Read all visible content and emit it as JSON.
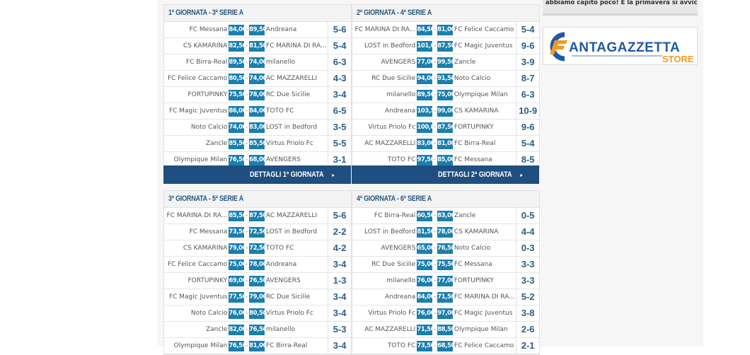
{
  "colors": {
    "points_box": "#1a7fae",
    "result": "#2a5d8f",
    "button": "#1f4f80",
    "header_text": "#2b5680",
    "logo_blue": "#1f5aa6",
    "logo_orange": "#f39a1e"
  },
  "sidebar": {
    "snippet": "abbiamo capito poco! E la primavera si avvicina...",
    "logo": {
      "text_main": "ANTAGAZZETTA",
      "text_sub": "STORE",
      "icon": "fantagazzetta-logo"
    }
  },
  "rounds": [
    {
      "title": "1ª GIORNATA - 3ª SERIE A",
      "button": "DETTAGLI 1ª GIORNATA",
      "matches": [
        [
          "FC Messana",
          "84,00",
          "89,50",
          "Andreana",
          "5-6"
        ],
        [
          "CS KAMARINA",
          "82,50",
          "81,50",
          "FC MARINA DI RA...",
          "5-4"
        ],
        [
          "FC Birra-Real",
          "89,50",
          "74,00",
          "milanello",
          "6-3"
        ],
        [
          "FC Felice Caccamo",
          "80,50",
          "74,00",
          "AC MAZZARELLI",
          "4-3"
        ],
        [
          "FORTUPINKY",
          "75,50",
          "78,00",
          "RC Due Sicilie",
          "3-4"
        ],
        [
          "FC Magic Juventus",
          "86,00",
          "84,00",
          "TOTO FC",
          "6-5"
        ],
        [
          "Noto Calcio",
          "74,00",
          "83,00",
          "LOST in Bedford",
          "3-5"
        ],
        [
          "Zancle",
          "85,50",
          "85,50",
          "Virtus Priolo Fc",
          "5-5"
        ],
        [
          "Olympique Milan",
          "76,50",
          "68,00",
          "AVENGERS",
          "3-1"
        ]
      ]
    },
    {
      "title": "2ª GIORNATA - 4ª SERIE A",
      "button": "DETTAGLI 2ª GIORNATA",
      "matches": [
        [
          "FC MARINA DI RA...",
          "84,50",
          "81,00",
          "FC Felice Caccamo",
          "5-4"
        ],
        [
          "LOST in Bedford",
          "101,0",
          "87,50",
          "FC Magic Juventus",
          "9-6"
        ],
        [
          "AVENGERS",
          "77,00",
          "99,50",
          "Zancle",
          "3-9"
        ],
        [
          "RC Due Sicilie",
          "94,00",
          "91,50",
          "Noto Calcio",
          "8-7"
        ],
        [
          "milanello",
          "89,50",
          "75,00",
          "Olympique Milan",
          "6-3"
        ],
        [
          "Andreana",
          "103,5",
          "99,00",
          "CS KAMARINA",
          "10-9"
        ],
        [
          "Virtus Priolo Fc",
          "100,0",
          "87,50",
          "FORTUPINKY",
          "9-6"
        ],
        [
          "AC MAZZARELLI",
          "83,00",
          "81,00",
          "FC Birra-Real",
          "5-4"
        ],
        [
          "TOTO FC",
          "97,50",
          "85,00",
          "FC Messana",
          "8-5"
        ]
      ]
    },
    {
      "title": "3ª GIORNATA - 5ª SERIE A",
      "matches": [
        [
          "FC MARINA DI RA...",
          "85,50",
          "87,50",
          "AC MAZZARELLI",
          "5-6"
        ],
        [
          "FC Messana",
          "73,50",
          "72,50",
          "LOST in Bedford",
          "2-2"
        ],
        [
          "CS KAMARINA",
          "79,00",
          "72,50",
          "TOTO FC",
          "4-2"
        ],
        [
          "FC Felice Caccamo",
          "75,00",
          "78,00",
          "Andreana",
          "3-4"
        ],
        [
          "FORTUPINKY",
          "69,00",
          "76,50",
          "AVENGERS",
          "1-3"
        ],
        [
          "FC Magic Juventus",
          "77,50",
          "79,00",
          "RC Due Sicilie",
          "3-4"
        ],
        [
          "Noto Calcio",
          "76,00",
          "80,50",
          "Virtus Priolo Fc",
          "3-4"
        ],
        [
          "Zancle",
          "82,00",
          "76,50",
          "milanello",
          "5-3"
        ],
        [
          "Olympique Milan",
          "76,50",
          "81,00",
          "FC Birra-Real",
          "3-4"
        ]
      ]
    },
    {
      "title": "4ª GIORNATA - 6ª SERIE A",
      "matches": [
        [
          "FC Birra-Real",
          "60,50",
          "83,00",
          "Zancle",
          "0-5"
        ],
        [
          "LOST in Bedford",
          "81,50",
          "78,00",
          "CS KAMARINA",
          "4-4"
        ],
        [
          "AVENGERS",
          "65,00",
          "76,50",
          "Noto Calcio",
          "0-3"
        ],
        [
          "RC Due Sicilie",
          "75,00",
          "75,50",
          "FC Messana",
          "3-3"
        ],
        [
          "milanello",
          "76,00",
          "77,00",
          "FORTUPINKY",
          "3-3"
        ],
        [
          "Andreana",
          "84,00",
          "71,50",
          "FC MARINA DI RA...",
          "5-2"
        ],
        [
          "Virtus Priolo Fc",
          "76,00",
          "97,00",
          "FC Magic Juventus",
          "3-8"
        ],
        [
          "AC MAZZARELLI",
          "71,50",
          "88,50",
          "Olympique Milan",
          "2-6"
        ],
        [
          "TOTO FC",
          "73,50",
          "68,50",
          "FC Felice Caccamo",
          "2-1"
        ]
      ]
    }
  ]
}
